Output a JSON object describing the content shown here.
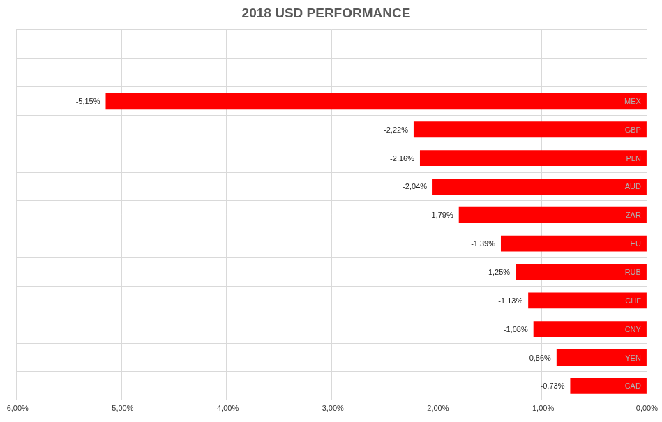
{
  "chart_data": {
    "type": "bar",
    "title": "2018 USD PERFORMANCE",
    "orientation": "horizontal",
    "categories": [
      null,
      null,
      "MEX",
      "GBP",
      "PLN",
      "AUD",
      "ZAR",
      "EU",
      "RUB",
      "CHF",
      "CNY",
      "YEN",
      "CAD"
    ],
    "values": [
      null,
      null,
      -5.15,
      -2.22,
      -2.16,
      -2.04,
      -1.79,
      -1.39,
      -1.25,
      -1.13,
      -1.08,
      -0.86,
      -0.73
    ],
    "value_labels": [
      null,
      null,
      "-5,15%",
      "-2,22%",
      "-2,16%",
      "-2,04%",
      "-1,79%",
      "-1,39%",
      "-1,25%",
      "-1,13%",
      "-1,08%",
      "-0,86%",
      "-0,73%"
    ],
    "color": "#ff0000",
    "xlim": [
      -6,
      0
    ],
    "xticks": [
      {
        "value": -6,
        "label": "-6,00%"
      },
      {
        "value": -5,
        "label": "-5,00%"
      },
      {
        "value": -4,
        "label": "-4,00%"
      },
      {
        "value": -3,
        "label": "-3,00%"
      },
      {
        "value": -2,
        "label": "-2,00%"
      },
      {
        "value": -1,
        "label": "-1,00%"
      },
      {
        "value": 0,
        "label": "0,00%"
      }
    ],
    "grid": true,
    "data_labels": true,
    "tick_labels": "x"
  }
}
